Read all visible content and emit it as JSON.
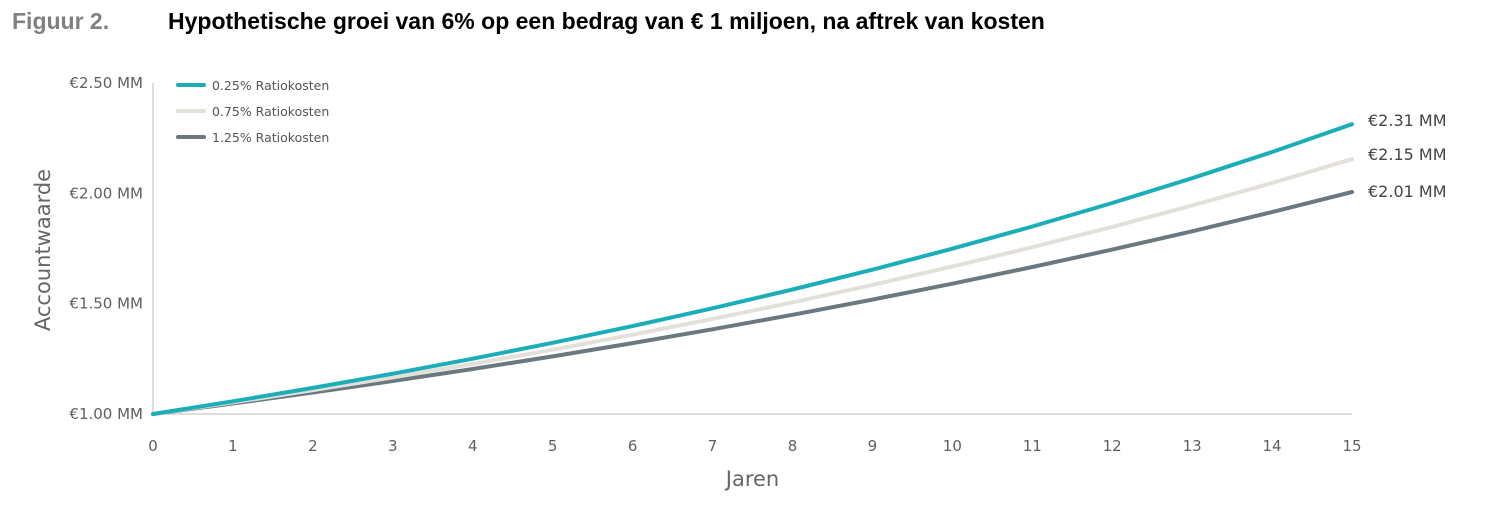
{
  "figure": {
    "label": "Figuur 2.",
    "title": "Hypothetische groei van 6% op een bedrag van € 1 miljoen, na aftrek van kosten"
  },
  "chart_data": {
    "type": "line",
    "title": "Hypothetische groei van 6% op een bedrag van € 1 miljoen, na aftrek van kosten",
    "xlabel": "Jaren",
    "ylabel": "Accountwaarde",
    "x": [
      0,
      1,
      2,
      3,
      4,
      5,
      6,
      7,
      8,
      9,
      10,
      11,
      12,
      13,
      14,
      15
    ],
    "xlim": [
      0,
      15
    ],
    "ylim": [
      1.0,
      2.5
    ],
    "x_ticks": [
      "0",
      "1",
      "2",
      "3",
      "4",
      "5",
      "6",
      "7",
      "8",
      "9",
      "10",
      "11",
      "12",
      "13",
      "14",
      "15"
    ],
    "y_ticks": [
      {
        "value": 1.0,
        "label": "€1.00 MM"
      },
      {
        "value": 1.5,
        "label": "€1.50 MM"
      },
      {
        "value": 2.0,
        "label": "€2.00 MM"
      },
      {
        "value": 2.5,
        "label": "€2.50 MM"
      }
    ],
    "grid": false,
    "legend_position": "top-left",
    "series": [
      {
        "name": "0.25% Ratiokosten",
        "color": "#1aaeb9",
        "values": [
          1.0,
          1.0575,
          1.1183,
          1.1826,
          1.2506,
          1.3225,
          1.3985,
          1.479,
          1.564,
          1.6539,
          1.749,
          1.8496,
          1.956,
          2.0684,
          2.1874,
          2.3131
        ],
        "end_label": "€2.31 MM"
      },
      {
        "name": "0.75% Ratiokosten",
        "color": "#e3e0da",
        "values": [
          1.0,
          1.0525,
          1.1078,
          1.1659,
          1.2271,
          1.2916,
          1.3594,
          1.4308,
          1.5059,
          1.5849,
          1.6681,
          1.7557,
          1.8479,
          1.9449,
          2.047,
          2.1545
        ],
        "end_label": "€2.15 MM"
      },
      {
        "name": "1.25% Ratiokosten",
        "color": "#6a7880",
        "values": [
          1.0,
          1.0475,
          1.0973,
          1.1494,
          1.204,
          1.2612,
          1.3211,
          1.3838,
          1.4496,
          1.5184,
          1.5905,
          1.6661,
          1.7452,
          1.8281,
          1.915,
          2.0059
        ],
        "end_label": "€2.01 MM"
      }
    ]
  }
}
